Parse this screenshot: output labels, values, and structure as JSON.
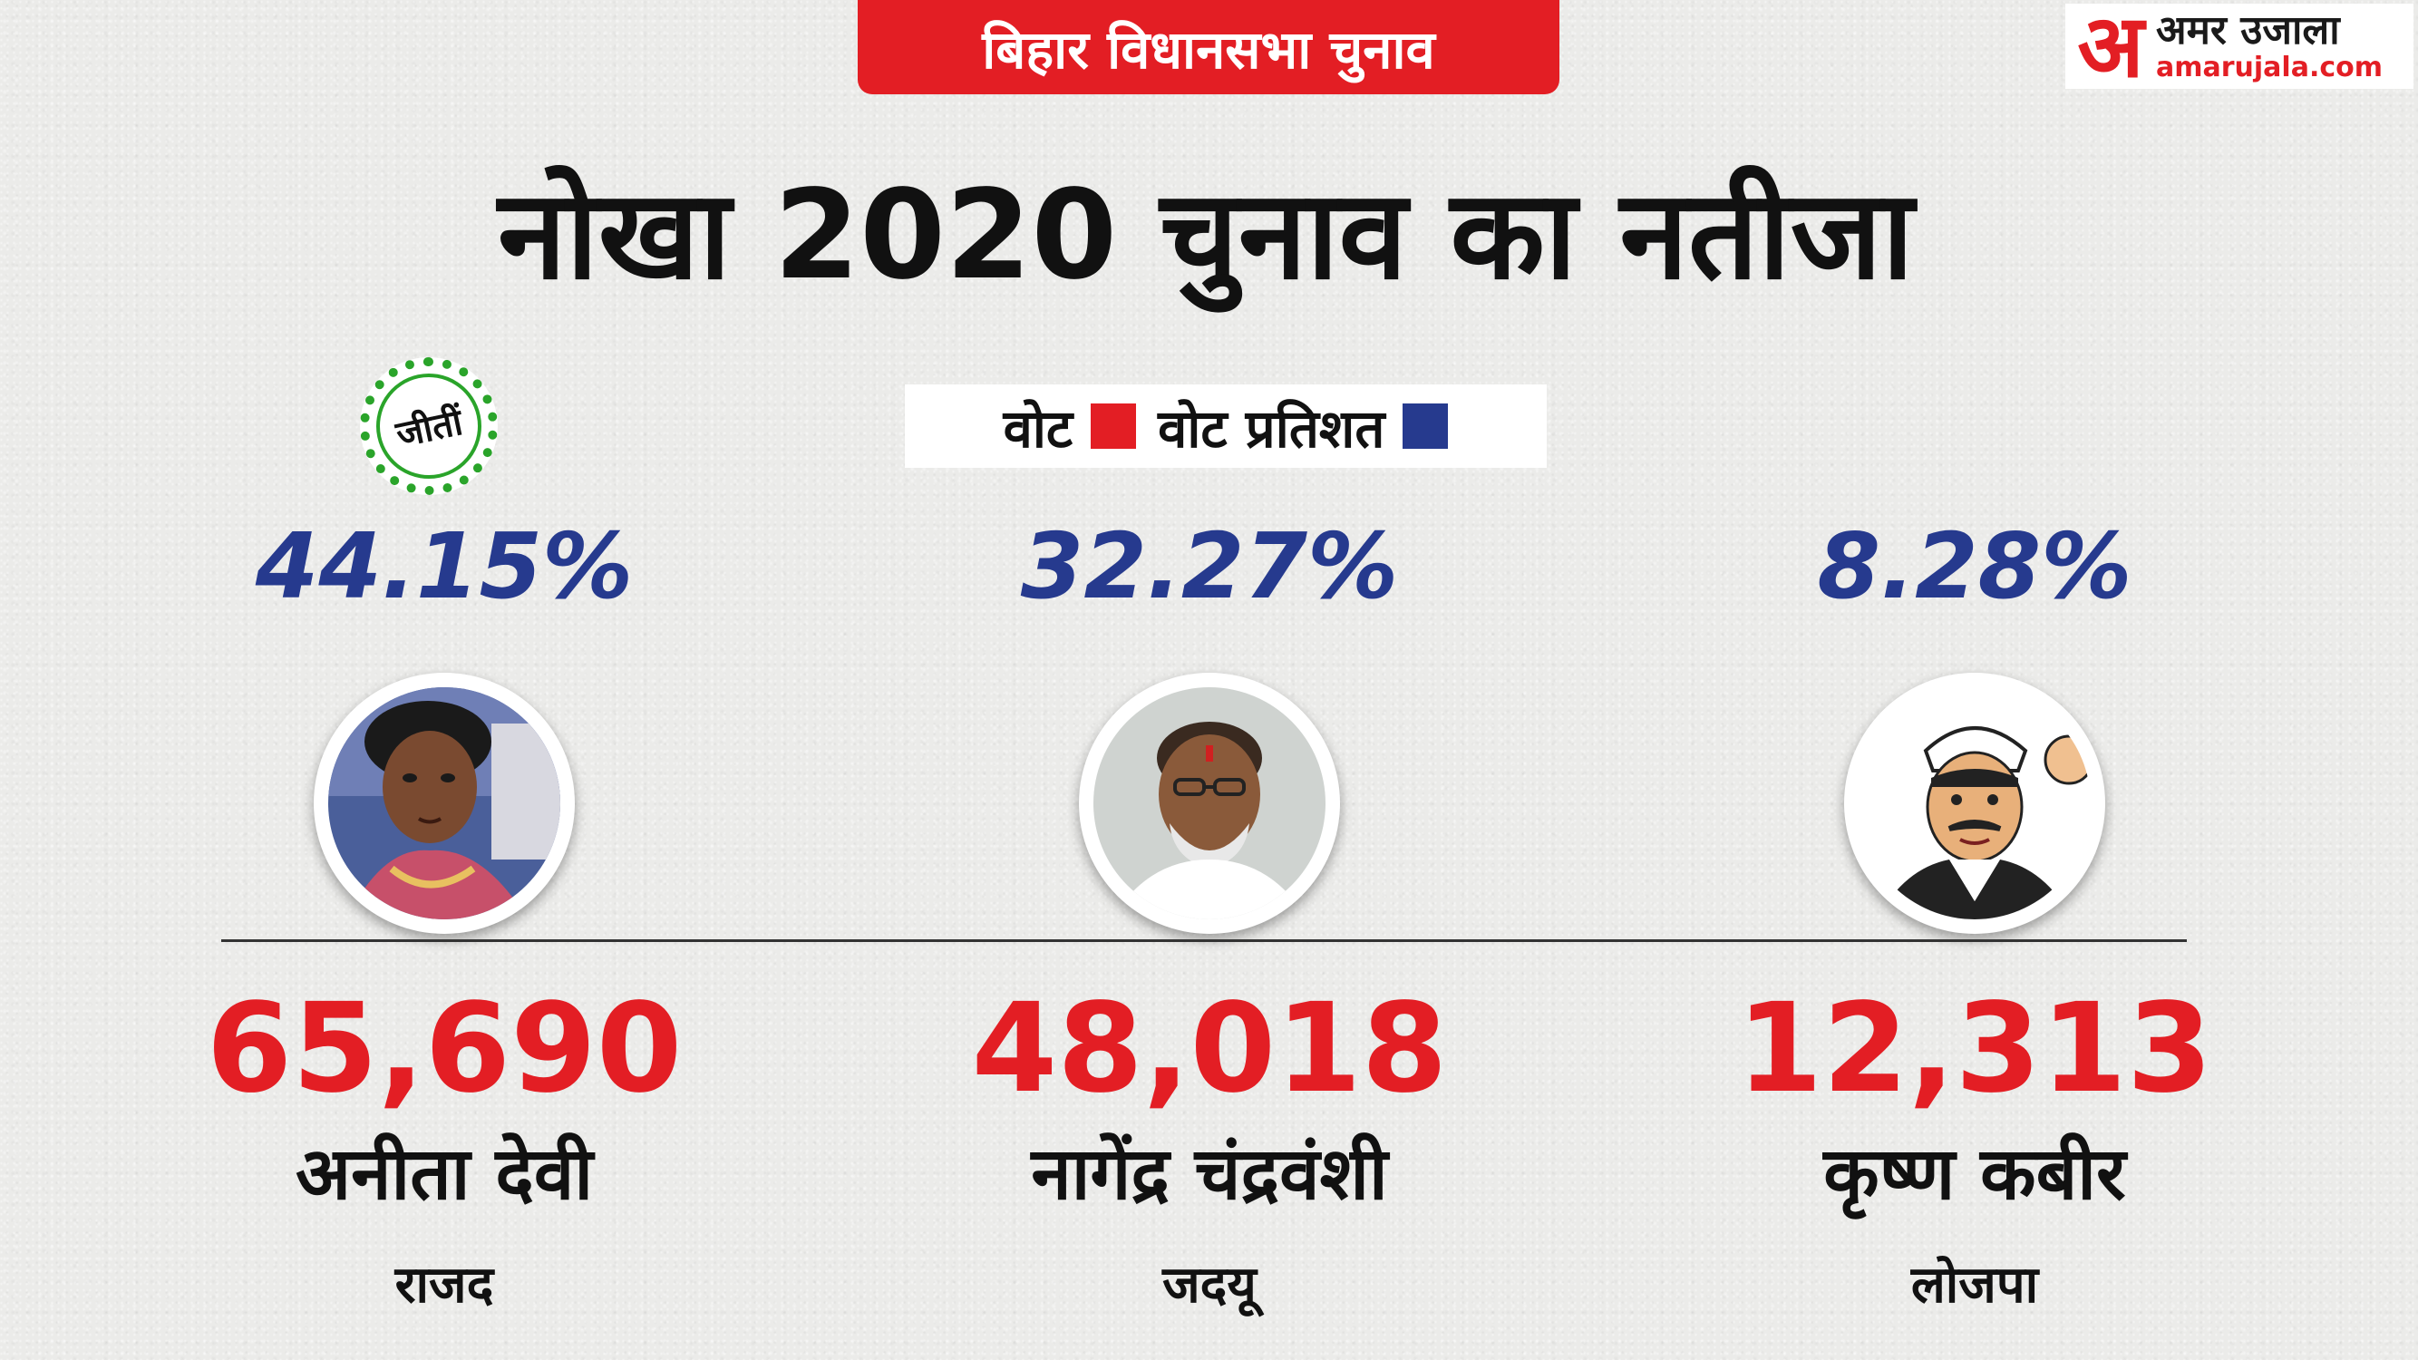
{
  "banner": {
    "topic": "बिहार विधानसभा चुनाव"
  },
  "logo": {
    "mark": "अ",
    "name": "अमर उजाला",
    "site": "amarujala.com"
  },
  "headline": "नोखा 2020 चुनाव का नतीजा",
  "legend": {
    "votes_label": "वोट",
    "votes_color": "#e31e24",
    "percent_label": "वोट प्रतिशत",
    "percent_color": "#263a8e"
  },
  "winner_badge": "जीतीं",
  "candidates": [
    {
      "percent": "44.15%",
      "votes": "65,690",
      "name": "अनीता देवी",
      "party": "राजद",
      "winner": true,
      "photo": "woman-photo"
    },
    {
      "percent": "32.27%",
      "votes": "48,018",
      "name": "नागेंद्र  चंद्रवंशी",
      "party": "जदयू",
      "winner": false,
      "photo": "man-photo"
    },
    {
      "percent": "8.28%",
      "votes": "12,313",
      "name": "कृष्ण कबीर",
      "party": "लोजपा",
      "winner": false,
      "photo": "cartoon-leader-icon"
    }
  ],
  "colors": {
    "accent_red": "#e31e24",
    "percent_blue": "#263a8e",
    "winner_green": "#2aa42a"
  }
}
